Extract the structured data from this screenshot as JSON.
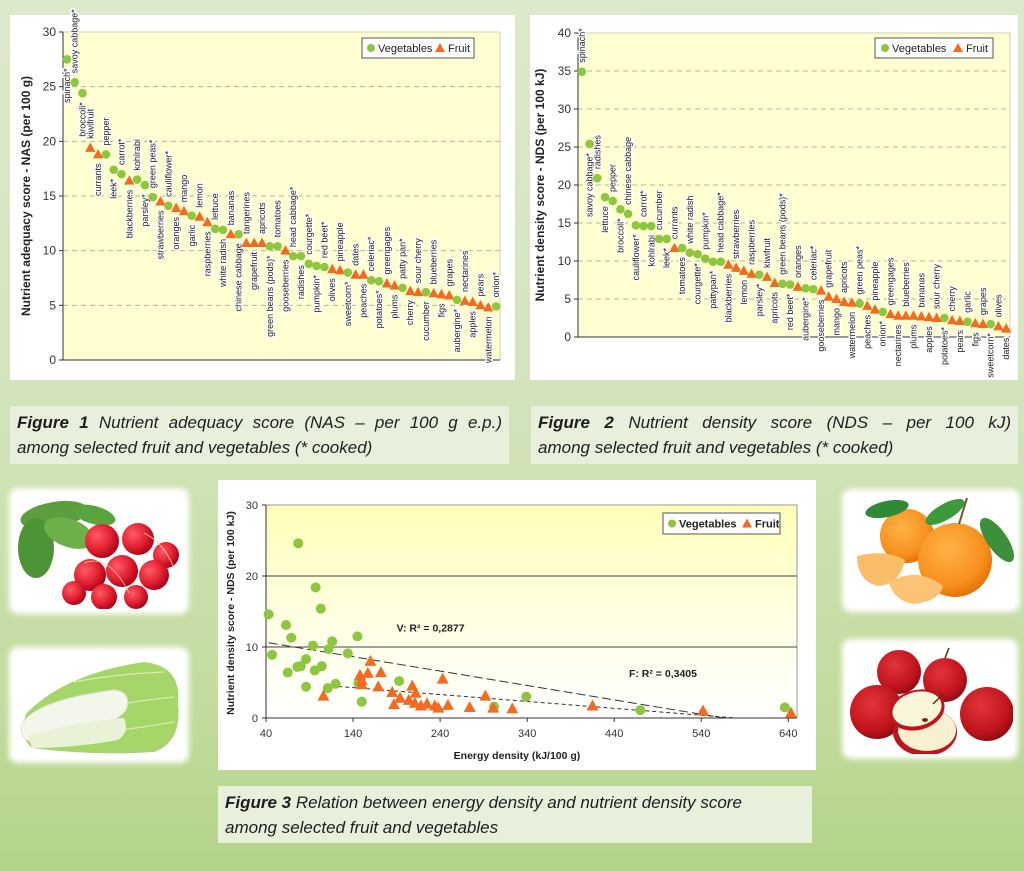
{
  "legend": {
    "vegetables": "Vegetables",
    "fruit": "Fruit"
  },
  "colors": {
    "vegetables": "#8DC63F",
    "fruit": "#F26B21",
    "plot_background": "#FFFFD2",
    "caption_background": "#E8F0DC"
  },
  "photos": [
    {
      "name": "radishes-photo"
    },
    {
      "name": "chinese-cabbage-photo"
    },
    {
      "name": "tangerines-photo"
    },
    {
      "name": "apples-photo"
    }
  ],
  "captions": [
    {
      "label": "Figure 1",
      "lines": [
        "Nutrient adequacy score (NAS – per 100 g e.p.)",
        "among selected fruit and vegetables (* cooked)"
      ]
    },
    {
      "label": "Figure 2",
      "lines": [
        "Nutrient density score (NDS – per 100 kJ)",
        "among selected fruit and vegetables (* cooked)"
      ]
    },
    {
      "label": "Figure 3",
      "lines": [
        "Relation between energy density and nutrient density score",
        "among selected fruit and vegetables"
      ]
    }
  ],
  "chart_data": [
    {
      "type": "scatter",
      "x_type": "category",
      "title": "",
      "xlabel": "",
      "ylabel": "Nutrient adequacy score - NAS (per 100 g)",
      "ylim": [
        0,
        30
      ],
      "yticks": [
        0,
        5,
        10,
        15,
        20,
        25,
        30
      ],
      "grid": "horizontal dashed",
      "legend": {
        "position": "top-right",
        "entries": [
          "Vegetables",
          "Fruit"
        ]
      },
      "series": [
        {
          "name": "Vegetables",
          "marker": "circle"
        },
        {
          "name": "Fruit",
          "marker": "triangle"
        }
      ],
      "points": [
        {
          "label": "spinach*",
          "series": "Vegetables",
          "value": 27.5
        },
        {
          "label": "savoy cabbage*",
          "series": "Vegetables",
          "value": 25.4
        },
        {
          "label": "broccoli*",
          "series": "Vegetables",
          "value": 24.4
        },
        {
          "label": "kiwifruit",
          "series": "Fruit",
          "value": 19.4
        },
        {
          "label": "currants",
          "series": "Fruit",
          "value": 18.8
        },
        {
          "label": "pepper",
          "series": "Vegetables",
          "value": 18.8
        },
        {
          "label": "leek*",
          "series": "Vegetables",
          "value": 17.4
        },
        {
          "label": "carrot*",
          "series": "Vegetables",
          "value": 17.0
        },
        {
          "label": "blackberries",
          "series": "Fruit",
          "value": 16.4
        },
        {
          "label": "kohlrabi",
          "series": "Vegetables",
          "value": 16.5
        },
        {
          "label": "parsley*",
          "series": "Vegetables",
          "value": 16.0
        },
        {
          "label": "green peas*",
          "series": "Vegetables",
          "value": 14.9
        },
        {
          "label": "strawberries",
          "series": "Fruit",
          "value": 14.5
        },
        {
          "label": "cauliflower*",
          "series": "Vegetables",
          "value": 14.1
        },
        {
          "label": "oranges",
          "series": "Fruit",
          "value": 13.9
        },
        {
          "label": "mango",
          "series": "Fruit",
          "value": 13.6
        },
        {
          "label": "garlic",
          "series": "Vegetables",
          "value": 13.2
        },
        {
          "label": "lemon",
          "series": "Fruit",
          "value": 13.1
        },
        {
          "label": "raspberries",
          "series": "Fruit",
          "value": 12.6
        },
        {
          "label": "lettuce",
          "series": "Vegetables",
          "value": 12.0
        },
        {
          "label": "white radish",
          "series": "Vegetables",
          "value": 11.9
        },
        {
          "label": "bananas",
          "series": "Fruit",
          "value": 11.5
        },
        {
          "label": "chinese cabbage",
          "series": "Vegetables",
          "value": 11.5
        },
        {
          "label": "tangerines",
          "series": "Fruit",
          "value": 10.7
        },
        {
          "label": "grapefruit",
          "series": "Fruit",
          "value": 10.7
        },
        {
          "label": "apricots",
          "series": "Fruit",
          "value": 10.7
        },
        {
          "label": "green beans (pods)*",
          "series": "Vegetables",
          "value": 10.4
        },
        {
          "label": "tomatoes",
          "series": "Vegetables",
          "value": 10.4
        },
        {
          "label": "gooseberries",
          "series": "Fruit",
          "value": 10.0
        },
        {
          "label": "head cabbage*",
          "series": "Vegetables",
          "value": 9.5
        },
        {
          "label": "radishes",
          "series": "Vegetables",
          "value": 9.5
        },
        {
          "label": "courgette*",
          "series": "Vegetables",
          "value": 8.8
        },
        {
          "label": "pumpkin*",
          "series": "Vegetables",
          "value": 8.6
        },
        {
          "label": "red beet*",
          "series": "Vegetables",
          "value": 8.5
        },
        {
          "label": "olives",
          "series": "Fruit",
          "value": 8.3
        },
        {
          "label": "pineapple",
          "series": "Fruit",
          "value": 8.2
        },
        {
          "label": "sweetcorn*",
          "series": "Vegetables",
          "value": 8.0
        },
        {
          "label": "dates",
          "series": "Fruit",
          "value": 7.8
        },
        {
          "label": "peaches",
          "series": "Fruit",
          "value": 7.8
        },
        {
          "label": "celeriac*",
          "series": "Vegetables",
          "value": 7.3
        },
        {
          "label": "potatoes*",
          "series": "Vegetables",
          "value": 7.2
        },
        {
          "label": "greengages",
          "series": "Fruit",
          "value": 7.0
        },
        {
          "label": "plums",
          "series": "Fruit",
          "value": 6.8
        },
        {
          "label": "patty pan*",
          "series": "Vegetables",
          "value": 6.6
        },
        {
          "label": "cherry",
          "series": "Fruit",
          "value": 6.3
        },
        {
          "label": "sour cherry",
          "series": "Fruit",
          "value": 6.2
        },
        {
          "label": "cucumber",
          "series": "Vegetables",
          "value": 6.2
        },
        {
          "label": "blueberries",
          "series": "Fruit",
          "value": 6.1
        },
        {
          "label": "figs",
          "series": "Fruit",
          "value": 6.0
        },
        {
          "label": "grapes",
          "series": "Fruit",
          "value": 5.9
        },
        {
          "label": "aubergine*",
          "series": "Vegetables",
          "value": 5.5
        },
        {
          "label": "nectarines",
          "series": "Fruit",
          "value": 5.4
        },
        {
          "label": "apples",
          "series": "Fruit",
          "value": 5.3
        },
        {
          "label": "pears",
          "series": "Fruit",
          "value": 5.0
        },
        {
          "label": "watermelon",
          "series": "Fruit",
          "value": 4.8
        },
        {
          "label": "onion*",
          "series": "Vegetables",
          "value": 4.9
        }
      ]
    },
    {
      "type": "scatter",
      "x_type": "category",
      "title": "",
      "xlabel": "",
      "ylabel": "Nutrient density score - NDS (per 100 kJ)",
      "ylim": [
        0,
        40
      ],
      "yticks": [
        0,
        5,
        10,
        15,
        20,
        25,
        30,
        35,
        40
      ],
      "grid": "horizontal dashed",
      "legend": {
        "position": "top-right",
        "entries": [
          "Vegetables",
          "Fruit"
        ]
      },
      "series": [
        {
          "name": "Vegetables",
          "marker": "circle"
        },
        {
          "name": "Fruit",
          "marker": "triangle"
        }
      ],
      "points": [
        {
          "label": "spinach*",
          "series": "Vegetables",
          "value": 34.9
        },
        {
          "label": "savoy cabbage*",
          "series": "Vegetables",
          "value": 25.4
        },
        {
          "label": "radishes",
          "series": "Vegetables",
          "value": 20.9
        },
        {
          "label": "lettuce",
          "series": "Vegetables",
          "value": 18.4
        },
        {
          "label": "pepper",
          "series": "Vegetables",
          "value": 17.9
        },
        {
          "label": "broccoli*",
          "series": "Vegetables",
          "value": 16.8
        },
        {
          "label": "chinese cabbage",
          "series": "Vegetables",
          "value": 16.2
        },
        {
          "label": "cauliflower*",
          "series": "Vegetables",
          "value": 14.7
        },
        {
          "label": "carrot*",
          "series": "Vegetables",
          "value": 14.6
        },
        {
          "label": "kohlrabi",
          "series": "Vegetables",
          "value": 14.6
        },
        {
          "label": "cucumber",
          "series": "Vegetables",
          "value": 12.9
        },
        {
          "label": "leek*",
          "series": "Vegetables",
          "value": 12.9
        },
        {
          "label": "currants",
          "series": "Fruit",
          "value": 11.7
        },
        {
          "label": "tomatoes",
          "series": "Vegetables",
          "value": 11.7
        },
        {
          "label": "white radish",
          "series": "Vegetables",
          "value": 11.1
        },
        {
          "label": "courgette*",
          "series": "Vegetables",
          "value": 10.9
        },
        {
          "label": "pumpkin*",
          "series": "Vegetables",
          "value": 10.3
        },
        {
          "label": "pattypan*",
          "series": "Vegetables",
          "value": 9.9
        },
        {
          "label": "head cabbage*",
          "series": "Vegetables",
          "value": 9.9
        },
        {
          "label": "blackberries",
          "series": "Fruit",
          "value": 9.5
        },
        {
          "label": "strawberries",
          "series": "Fruit",
          "value": 9.1
        },
        {
          "label": "lemon",
          "series": "Fruit",
          "value": 8.7
        },
        {
          "label": "raspberries",
          "series": "Fruit",
          "value": 8.3
        },
        {
          "label": "parsley*",
          "series": "Vegetables",
          "value": 8.2
        },
        {
          "label": "kiwifruit",
          "series": "Fruit",
          "value": 7.9
        },
        {
          "label": "apricots",
          "series": "Fruit",
          "value": 7.1
        },
        {
          "label": "green beans (pods)*",
          "series": "Vegetables",
          "value": 7.0
        },
        {
          "label": "red beet*",
          "series": "Vegetables",
          "value": 6.9
        },
        {
          "label": "oranges",
          "series": "Fruit",
          "value": 6.6
        },
        {
          "label": "aubergine*",
          "series": "Vegetables",
          "value": 6.4
        },
        {
          "label": "celeriac*",
          "series": "Vegetables",
          "value": 6.3
        },
        {
          "label": "gooseberries",
          "series": "Fruit",
          "value": 6.1
        },
        {
          "label": "grapefruit",
          "series": "Fruit",
          "value": 5.3
        },
        {
          "label": "mango",
          "series": "Fruit",
          "value": 5.0
        },
        {
          "label": "apricots",
          "series": "Fruit",
          "value": 4.6
        },
        {
          "label": "watermelon",
          "series": "Fruit",
          "value": 4.5
        },
        {
          "label": "green peas*",
          "series": "Vegetables",
          "value": 4.4
        },
        {
          "label": "peaches",
          "series": "Fruit",
          "value": 4.1
        },
        {
          "label": "pineapple",
          "series": "Fruit",
          "value": 3.6
        },
        {
          "label": "onion*",
          "series": "Vegetables",
          "value": 3.3
        },
        {
          "label": "greengages",
          "series": "Fruit",
          "value": 3.0
        },
        {
          "label": "nectarines",
          "series": "Fruit",
          "value": 2.8
        },
        {
          "label": "blueberries",
          "series": "Fruit",
          "value": 2.8
        },
        {
          "label": "plums",
          "series": "Fruit",
          "value": 2.8
        },
        {
          "label": "bananas",
          "series": "Fruit",
          "value": 2.7
        },
        {
          "label": "apples",
          "series": "Fruit",
          "value": 2.6
        },
        {
          "label": "sour cherry",
          "series": "Fruit",
          "value": 2.5
        },
        {
          "label": "potatoes*",
          "series": "Vegetables",
          "value": 2.5
        },
        {
          "label": "cherry",
          "series": "Fruit",
          "value": 2.2
        },
        {
          "label": "pears",
          "series": "Fruit",
          "value": 2.1
        },
        {
          "label": "garlic",
          "series": "Vegetables",
          "value": 2.0
        },
        {
          "label": "figs",
          "series": "Fruit",
          "value": 1.8
        },
        {
          "label": "grapes",
          "series": "Fruit",
          "value": 1.7
        },
        {
          "label": "sweetcorn*",
          "series": "Vegetables",
          "value": 1.7
        },
        {
          "label": "olives",
          "series": "Fruit",
          "value": 1.4
        },
        {
          "label": "dates",
          "series": "Fruit",
          "value": 1.1
        }
      ]
    },
    {
      "type": "scatter",
      "title": "",
      "xlabel": "Energy density (kJ/100 g)",
      "ylabel": "Nutrient density score - NDS (per 100 kJ)",
      "xlim": [
        40,
        650
      ],
      "ylim": [
        0,
        30
      ],
      "xticks": [
        40,
        140,
        240,
        340,
        440,
        540,
        640
      ],
      "yticks": [
        0,
        10,
        20,
        30
      ],
      "grid": "horizontal solid at 10 and 20",
      "legend": {
        "position": "top-right",
        "entries": [
          "Vegetables",
          "Fruit"
        ]
      },
      "series": [
        {
          "name": "Vegetables",
          "marker": "circle",
          "points": [
            [
              43,
              14.6
            ],
            [
              47,
              8.9
            ],
            [
              63,
              13.1
            ],
            [
              65,
              6.4
            ],
            [
              69,
              11.3
            ],
            [
              76,
              7.2
            ],
            [
              77,
              24.6
            ],
            [
              80,
              7.3
            ],
            [
              86,
              8.3
            ],
            [
              86,
              4.4
            ],
            [
              94,
              10.2
            ],
            [
              96,
              6.7
            ],
            [
              97,
              18.4
            ],
            [
              103,
              15.4
            ],
            [
              104,
              7.3
            ],
            [
              111,
              4.2
            ],
            [
              112,
              9.7
            ],
            [
              116,
              10.8
            ],
            [
              120,
              4.8
            ],
            [
              134,
              9.1
            ],
            [
              145,
              11.5
            ],
            [
              146,
              4.9
            ],
            [
              150,
              2.3
            ],
            [
              193,
              5.2
            ],
            [
              302,
              1.6
            ],
            [
              339,
              3.0
            ],
            [
              470,
              1.1
            ],
            [
              636,
              1.5
            ]
          ]
        },
        {
          "name": "Fruit",
          "marker": "triangle",
          "points": [
            [
              106,
              3.1
            ],
            [
              148,
              6.0
            ],
            [
              150,
              5.3
            ],
            [
              150,
              4.7
            ],
            [
              157,
              6.3
            ],
            [
              160,
              8.0
            ],
            [
              169,
              4.4
            ],
            [
              172,
              6.4
            ],
            [
              185,
              3.6
            ],
            [
              187,
              1.9
            ],
            [
              194,
              2.8
            ],
            [
              204,
              2.5
            ],
            [
              208,
              4.5
            ],
            [
              211,
              2.1
            ],
            [
              212,
              3.5
            ],
            [
              218,
              1.7
            ],
            [
              225,
              2.0
            ],
            [
              234,
              1.7
            ],
            [
              238,
              1.4
            ],
            [
              243,
              5.5
            ],
            [
              249,
              1.8
            ],
            [
              274,
              1.5
            ],
            [
              292,
              3.1
            ],
            [
              301,
              1.4
            ],
            [
              323,
              1.3
            ],
            [
              415,
              1.7
            ],
            [
              542,
              1.0
            ],
            [
              643,
              0.7
            ]
          ]
        }
      ],
      "trendlines": [
        {
          "series": "Vegetables",
          "style": "long-dash",
          "from": [
            43,
            10.6
          ],
          "to": [
            566,
            0.0
          ]
        },
        {
          "series": "Fruit",
          "style": "short-dash",
          "from": [
            107,
            4.6
          ],
          "to": [
            580,
            0.0
          ]
        }
      ],
      "annotations": [
        {
          "text": "V: R² = 0,2877",
          "at": [
            190,
            12.2
          ]
        },
        {
          "text": "F: R² = 0,3405",
          "at": [
            457,
            5.8
          ]
        }
      ]
    }
  ]
}
